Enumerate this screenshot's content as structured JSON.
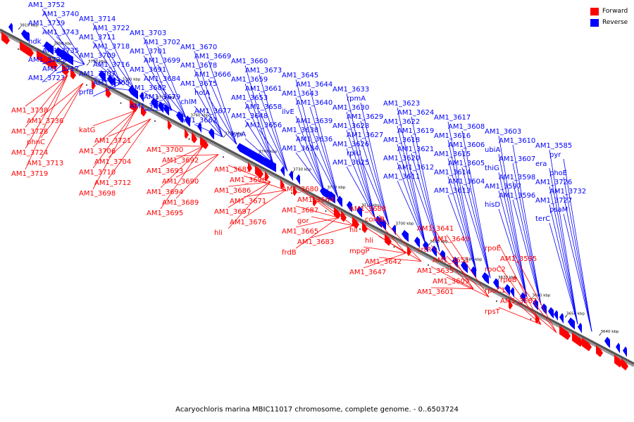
{
  "caption": "Acaryochloris marina MBIC11017 chromosome, complete genome. - 0..6503724",
  "legend": [
    {
      "label": "Forward",
      "color": "#ff0000"
    },
    {
      "label": "Reverse",
      "color": "#0000ff"
    }
  ],
  "colors": {
    "forward": "#ff0000",
    "reverse": "#0000ff",
    "axis": "#777777"
  },
  "ticks": [
    {
      "label": "3810 kbp",
      "kbp": 3810
    },
    {
      "label": "3800 kbp",
      "kbp": 3800
    },
    {
      "label": "3790 kbp",
      "kbp": 3790
    },
    {
      "label": "3780 kbp",
      "kbp": 3780
    },
    {
      "label": "3770 kbp",
      "kbp": 3770
    },
    {
      "label": "3760 kbp",
      "kbp": 3760
    },
    {
      "label": "3750 kbp",
      "kbp": 3750
    },
    {
      "label": "3740 kbp",
      "kbp": 3740
    },
    {
      "label": "3730 kbp",
      "kbp": 3730
    },
    {
      "label": "3720 kbp",
      "kbp": 3720
    },
    {
      "label": "3710 kbp",
      "kbp": 3710
    },
    {
      "label": "3700 kbp",
      "kbp": 3700
    },
    {
      "label": "3690 kbp",
      "kbp": 3690
    },
    {
      "label": "3680 kbp",
      "kbp": 3680
    },
    {
      "label": "3670 kbp",
      "kbp": 3670
    },
    {
      "label": "3660 kbp",
      "kbp": 3660
    },
    {
      "label": "3650 kbp",
      "kbp": 3650
    },
    {
      "label": "3640 kbp",
      "kbp": 3640
    }
  ],
  "reverse_labels": [
    "AM1_3752",
    "AM1_3740",
    "AM1_3739",
    "AM1_3743",
    "ndk",
    "AM1_3735",
    "AM1_3725",
    "AM1_3717",
    "AM1_3723",
    "AM1_3714",
    "AM1_3722",
    "AM1_3711",
    "AM1_3718",
    "AM1_3709",
    "AM1_3716",
    "AM1_3707",
    "AM1_3705",
    "prfB",
    "AM1_3703",
    "AM1_3702",
    "AM1_3701",
    "AM1_3699",
    "AM1_3691",
    "AM1_3684",
    "AM1_3682",
    "AM1_3679",
    "AM1_3672",
    "AM1_3670",
    "AM1_3669",
    "AM1_3678",
    "AM1_3666",
    "AM1_3675",
    "holA",
    "chlM",
    "AM1_3677",
    "AM1_3662",
    "AM1_3660",
    "AM1_3673",
    "AM1_3659",
    "AM1_3661",
    "AM1_3653",
    "AM1_3658",
    "AM1_3648",
    "AM1_3656",
    "lspA",
    "AM1_3645",
    "AM1_3644",
    "AM1_3643",
    "AM1_3640",
    "ilvE",
    "AM1_3639",
    "AM1_3638",
    "AM1_3636",
    "AM1_3634",
    "AM1_3633",
    "rpmA",
    "AM1_3630",
    "AM1_3629",
    "AM1_3628",
    "AM1_3627",
    "AM1_3626",
    "rplU",
    "AM1_3625",
    "AM1_3623",
    "AM1_3624",
    "AM1_3622",
    "AM1_3619",
    "AM1_3618",
    "AM1_3621",
    "AM1_3620",
    "AM1_3612",
    "AM1_3611",
    "AM1_3617",
    "AM1_3608",
    "AM1_3616",
    "AM1_3606",
    "AM1_3615",
    "AM1_3605",
    "AM1_3614",
    "AM1_3604",
    "AM1_3613",
    "AM1_3603",
    "AM1_3610",
    "ubiA",
    "AM1_3607",
    "thiG",
    "AM1_3598",
    "AM1_3597",
    "AM1_3596",
    "hisD",
    "AM1_3585",
    "pyr",
    "era",
    "phoE",
    "AM1_3726",
    "AM1_3732",
    "AM1_3727",
    "psaM",
    "terC"
  ],
  "forward_labels": [
    "AM1_3738",
    "AM1_3736",
    "AM1_3728",
    "phnC",
    "AM1_3724",
    "AM1_3713",
    "AM1_3719",
    "katG",
    "AM1_3721",
    "AM1_3706",
    "AM1_3704",
    "AM1_3710",
    "AM1_3712",
    "AM1_3698",
    "AM1_3700",
    "AM1_3692",
    "AM1_3693",
    "AM1_3690",
    "AM1_3694",
    "AM1_3689",
    "AM1_3695",
    "AM1_3685",
    "AM1_3696",
    "AM1_3686",
    "AM1_3671",
    "AM1_3697",
    "AM1_3676",
    "hli",
    "AM1_3680",
    "AM1_3664",
    "AM1_3687",
    "gor",
    "AM1_3665",
    "AM1_3683",
    "frdB",
    "AM1_3688",
    "comB",
    "hli",
    "hli",
    "mpgP",
    "AM1_3642",
    "AM1_3647",
    "AM1_3641",
    "AM1_3649",
    "crtR",
    "AM1_3651",
    "AM1_3635",
    "AM1_3609",
    "AM1_3601",
    "rpoE",
    "AM1_3595",
    "rpoC2",
    "rpoB",
    "rpoC1",
    "AM1_3587",
    "rpsT"
  ]
}
